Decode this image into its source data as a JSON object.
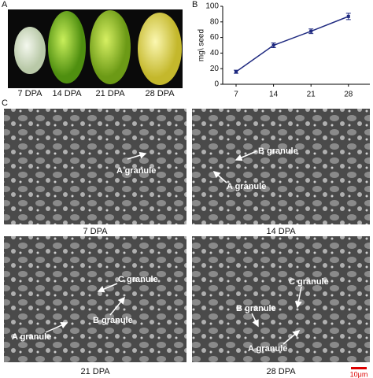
{
  "panels": {
    "A": {
      "letter": "A",
      "seeds": [
        "7 DPA",
        "14 DPA",
        "21 DPA",
        "28 DPA"
      ]
    },
    "B": {
      "letter": "B"
    },
    "C": {
      "letter": "C",
      "scale_bar": "10μm",
      "images": [
        {
          "caption": "7 DPA",
          "labels": [
            "A granule"
          ]
        },
        {
          "caption": "14 DPA",
          "labels": [
            "B granule",
            "A granule"
          ]
        },
        {
          "caption": "21 DPA",
          "labels": [
            "C granule",
            "B granule",
            "A granule"
          ]
        },
        {
          "caption": "28 DPA",
          "labels": [
            "C granule",
            "B granule",
            "A granule"
          ]
        }
      ]
    }
  },
  "chart_data": {
    "type": "line",
    "ylabel": "mg\\ seed",
    "x": [
      7,
      14,
      21,
      28
    ],
    "values": [
      16,
      50,
      68,
      87
    ],
    "errors": [
      2,
      3,
      3,
      4
    ],
    "color": "#1f2a80",
    "xlim": [
      4.5,
      32
    ],
    "xticks": [
      7,
      14,
      21,
      28
    ],
    "ylim": [
      0,
      100
    ],
    "yticks": [
      0,
      20,
      40,
      60,
      80,
      100
    ]
  }
}
